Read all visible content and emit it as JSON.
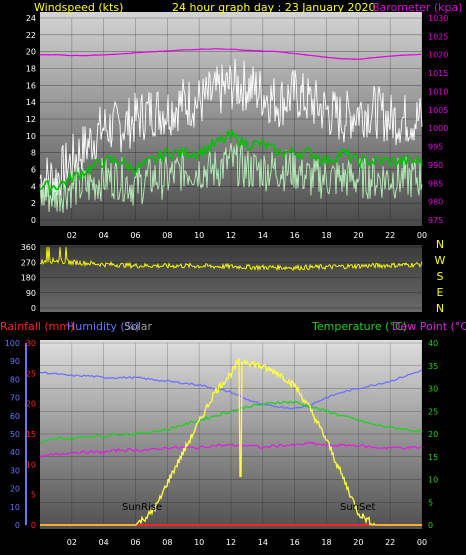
{
  "header": {
    "wind_label": "Windspeed (kts)",
    "date_label": "24 hour graph day : 23 January 2020",
    "baro_label": "Barometer (kpa)"
  },
  "colors": {
    "background": "#000000",
    "gust": "#ffffff",
    "wind": "#b8f0b8",
    "wind_avg": "#00c000",
    "barometer": "#e000e0",
    "direction": "#ffff00",
    "temperature": "#20d020",
    "dew_point": "#e020e0",
    "humidity": "#7070ff",
    "solar": "#ffff40",
    "rainfall": "#ff2020",
    "title": "#ffff00"
  },
  "chart_data": [
    {
      "type": "line",
      "panel": "wind-barometer",
      "x_ticks": [
        "02",
        "04",
        "06",
        "08",
        "10",
        "12",
        "14",
        "16",
        "18",
        "20",
        "22",
        "00"
      ],
      "x": [
        0,
        1,
        2,
        3,
        4,
        5,
        6,
        7,
        8,
        9,
        10,
        11,
        12,
        13,
        14,
        15,
        16,
        17,
        18,
        19,
        20,
        21,
        22,
        23,
        24
      ],
      "y_left_ticks": [
        "0",
        "2",
        "4",
        "6",
        "8",
        "10",
        "12",
        "14",
        "16",
        "18",
        "20",
        "22",
        "24"
      ],
      "y_left_lim": [
        0,
        24
      ],
      "y_right_ticks": [
        "975",
        "980",
        "985",
        "990",
        "995",
        "1000",
        "1005",
        "1010",
        "1015",
        "1020",
        "1025",
        "1030"
      ],
      "y_right_lim": [
        975,
        1030
      ],
      "series": [
        {
          "key": "gust",
          "values": [
            5,
            5,
            7,
            9,
            11,
            11,
            12,
            13,
            13,
            14,
            14,
            15,
            16,
            16,
            15,
            14,
            15,
            14,
            13,
            12,
            13,
            13,
            12,
            12,
            12
          ]
        },
        {
          "key": "wind_avg",
          "values": [
            4,
            4,
            5,
            6,
            7,
            7,
            6,
            7,
            8,
            8,
            8,
            9,
            10,
            9,
            9,
            8,
            8,
            8,
            7,
            8,
            7,
            7,
            7,
            7,
            7
          ]
        },
        {
          "key": "wind",
          "values": [
            3,
            3,
            4,
            4,
            5,
            5,
            4,
            5,
            5,
            6,
            6,
            6,
            7,
            6,
            6,
            6,
            6,
            5,
            5,
            5,
            5,
            5,
            5,
            5,
            5
          ]
        },
        {
          "key": "barometer",
          "values": [
            1020,
            1020,
            1019.8,
            1019.8,
            1020,
            1020.2,
            1020.5,
            1020.8,
            1021,
            1021.3,
            1021.5,
            1021.6,
            1021.5,
            1021.2,
            1021,
            1020.8,
            1020.3,
            1019.8,
            1019.3,
            1018.9,
            1018.8,
            1019.2,
            1019.6,
            1019.9,
            1020.1
          ]
        }
      ]
    },
    {
      "type": "line",
      "panel": "wind-direction",
      "x": [
        0,
        1,
        2,
        3,
        4,
        5,
        6,
        7,
        8,
        9,
        10,
        11,
        12,
        13,
        14,
        15,
        16,
        17,
        18,
        19,
        20,
        21,
        22,
        23,
        24
      ],
      "y_left_ticks": [
        "0",
        "90",
        "180",
        "270",
        "360"
      ],
      "y_left_lim": [
        0,
        360
      ],
      "y_right_ticks": [
        "N",
        "E",
        "S",
        "W",
        "N"
      ],
      "series": [
        {
          "key": "direction",
          "values": [
            275,
            280,
            270,
            265,
            258,
            255,
            250,
            250,
            248,
            250,
            248,
            245,
            245,
            242,
            240,
            240,
            238,
            240,
            242,
            245,
            248,
            250,
            252,
            255,
            258
          ]
        }
      ]
    },
    {
      "type": "line",
      "panel": "temp-humidity-solar",
      "labels": {
        "rainfall": "Rainfall (mm)",
        "humidity": "Humidity (%)",
        "solar": "Solar",
        "temperature": "Temperature (°C)",
        "dew_point": "Dew Point (°C)",
        "sunrise": "SunRise",
        "sunset": "SunSet"
      },
      "x_ticks": [
        "02",
        "04",
        "06",
        "08",
        "10",
        "12",
        "14",
        "16",
        "18",
        "20",
        "22",
        "00"
      ],
      "x": [
        0,
        1,
        2,
        3,
        4,
        5,
        6,
        7,
        8,
        9,
        10,
        11,
        12,
        13,
        14,
        15,
        16,
        17,
        18,
        19,
        20,
        21,
        22,
        23,
        24
      ],
      "y_humidity_ticks": [
        "0",
        "10",
        "20",
        "30",
        "40",
        "50",
        "60",
        "70",
        "80",
        "90",
        "100"
      ],
      "y_humidity_lim": [
        0,
        100
      ],
      "y_rain_ticks": [
        "0",
        "5",
        "10",
        "15",
        "20",
        "25",
        "30"
      ],
      "y_rain_lim": [
        0,
        30
      ],
      "y_temp_ticks": [
        "0",
        "5",
        "10",
        "15",
        "20",
        "25",
        "30",
        "35",
        "40"
      ],
      "y_temp_lim": [
        0,
        40
      ],
      "series": [
        {
          "key": "humidity",
          "values": [
            84,
            83,
            82,
            82,
            81,
            81,
            81,
            80,
            79,
            78,
            77,
            75,
            73,
            69,
            66,
            65,
            64,
            66,
            70,
            73,
            75,
            77,
            79,
            82,
            85
          ]
        },
        {
          "key": "temperature",
          "values": [
            18,
            19,
            19,
            19.5,
            19.5,
            20,
            20,
            20.5,
            21,
            22,
            23,
            24,
            25,
            26,
            26.5,
            27,
            27,
            26,
            25,
            24,
            23,
            22,
            21.5,
            21,
            20.5
          ]
        },
        {
          "key": "dew_point",
          "values": [
            15,
            15.5,
            16,
            16,
            16,
            16.5,
            16.5,
            16.5,
            17,
            17,
            17,
            17.5,
            17.5,
            17.5,
            17,
            17.5,
            17.5,
            18,
            17.5,
            17.5,
            17.5,
            17,
            17,
            17,
            17
          ]
        },
        {
          "key": "rainfall",
          "values": [
            0,
            0,
            0,
            0,
            0,
            0,
            0,
            0,
            0,
            0,
            0,
            0,
            0,
            0,
            0,
            0,
            0,
            0,
            0,
            0,
            0,
            0,
            0,
            0,
            0
          ]
        }
      ],
      "solar": {
        "x": [
          0,
          6,
          6.5,
          7,
          7.5,
          8,
          9,
          10,
          11,
          12,
          12.5,
          13,
          14,
          15,
          16,
          17,
          18,
          19,
          19.5,
          20,
          21,
          24
        ],
        "values": [
          0,
          0,
          1,
          2,
          4,
          7,
          12,
          17,
          22,
          25,
          27,
          27,
          26,
          25,
          23,
          19,
          14,
          8,
          5,
          2,
          0,
          0
        ],
        "lim": [
          0,
          30
        ]
      }
    }
  ]
}
